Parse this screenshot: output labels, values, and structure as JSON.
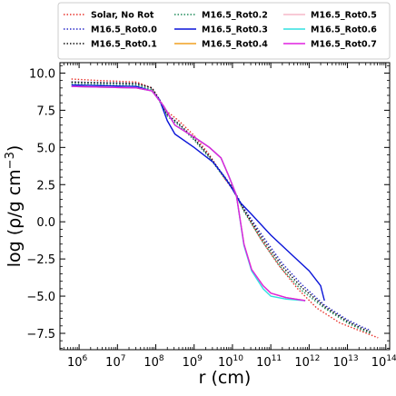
{
  "chart_data": {
    "type": "line",
    "xlabel_base": "r (cm)",
    "ylabel_base": "log (ρ/g cm",
    "ylabel_sup": "−3",
    "ylabel_close": ")",
    "x_scale": "log",
    "x_range_log10": [
      5.5,
      14.1
    ],
    "ylim": [
      -8.6,
      10.7
    ],
    "grid": false,
    "legend_placement": "top, above plot",
    "x_ticks": [
      {
        "base": "10",
        "exp": "6"
      },
      {
        "base": "10",
        "exp": "7"
      },
      {
        "base": "10",
        "exp": "8"
      },
      {
        "base": "10",
        "exp": "9"
      },
      {
        "base": "10",
        "exp": "10"
      },
      {
        "base": "10",
        "exp": "11"
      },
      {
        "base": "10",
        "exp": "12"
      },
      {
        "base": "10",
        "exp": "13"
      },
      {
        "base": "10",
        "exp": "14"
      }
    ],
    "y_ticks": [
      "10.0",
      "7.5",
      "5.0",
      "2.5",
      "0.0",
      "−2.5",
      "−5.0",
      "−7.5"
    ],
    "series": [
      {
        "name": "Solar, No Rot",
        "color": "#e8322b",
        "style": "dotted",
        "points": [
          [
            5.8,
            9.6
          ],
          [
            6.5,
            9.5
          ],
          [
            7.5,
            9.4
          ],
          [
            7.9,
            9.0
          ],
          [
            8.1,
            8.2
          ],
          [
            8.3,
            7.4
          ],
          [
            8.6,
            6.8
          ],
          [
            9.0,
            5.8
          ],
          [
            9.4,
            4.5
          ],
          [
            9.8,
            2.9
          ],
          [
            10.0,
            2.2
          ],
          [
            10.3,
            0.8
          ],
          [
            10.7,
            -1.0
          ],
          [
            11.2,
            -2.9
          ],
          [
            11.7,
            -4.5
          ],
          [
            12.2,
            -5.8
          ],
          [
            12.8,
            -6.8
          ],
          [
            13.3,
            -7.3
          ],
          [
            13.8,
            -7.8
          ]
        ]
      },
      {
        "name": "M16.5_Rot0.0",
        "color": "#2b2bc8",
        "style": "dotted",
        "points": [
          [
            5.8,
            9.4
          ],
          [
            7.5,
            9.3
          ],
          [
            7.9,
            9.0
          ],
          [
            8.1,
            8.2
          ],
          [
            8.3,
            7.2
          ],
          [
            8.6,
            6.6
          ],
          [
            9.0,
            5.6
          ],
          [
            9.4,
            4.4
          ],
          [
            9.8,
            3.0
          ],
          [
            10.0,
            2.3
          ],
          [
            10.3,
            0.9
          ],
          [
            10.8,
            -1.0
          ],
          [
            11.3,
            -2.8
          ],
          [
            11.8,
            -4.2
          ],
          [
            12.4,
            -5.6
          ],
          [
            13.0,
            -6.6
          ],
          [
            13.4,
            -7.1
          ],
          [
            13.6,
            -7.3
          ]
        ]
      },
      {
        "name": "M16.5_Rot0.1",
        "color": "#111111",
        "style": "dotted",
        "points": [
          [
            5.8,
            9.4
          ],
          [
            7.5,
            9.3
          ],
          [
            7.9,
            9.0
          ],
          [
            8.1,
            8.2
          ],
          [
            8.3,
            7.2
          ],
          [
            8.6,
            6.6
          ],
          [
            9.0,
            5.6
          ],
          [
            9.4,
            4.4
          ],
          [
            9.8,
            3.0
          ],
          [
            10.0,
            2.3
          ],
          [
            10.3,
            0.8
          ],
          [
            10.8,
            -1.2
          ],
          [
            11.3,
            -3.0
          ],
          [
            11.8,
            -4.4
          ],
          [
            12.4,
            -5.7
          ],
          [
            13.0,
            -6.7
          ],
          [
            13.4,
            -7.2
          ],
          [
            13.6,
            -7.4
          ]
        ]
      },
      {
        "name": "M16.5_Rot0.2",
        "color": "#1e8c5a",
        "style": "dotted",
        "points": [
          [
            5.8,
            9.3
          ],
          [
            7.5,
            9.2
          ],
          [
            7.9,
            8.9
          ],
          [
            8.1,
            8.1
          ],
          [
            8.3,
            7.1
          ],
          [
            8.6,
            6.5
          ],
          [
            9.0,
            5.5
          ],
          [
            9.4,
            4.3
          ],
          [
            9.8,
            2.9
          ],
          [
            10.0,
            2.3
          ],
          [
            10.3,
            0.7
          ],
          [
            10.8,
            -1.4
          ],
          [
            11.3,
            -3.2
          ],
          [
            11.8,
            -4.6
          ],
          [
            12.4,
            -5.8
          ],
          [
            13.0,
            -6.8
          ],
          [
            13.4,
            -7.3
          ],
          [
            13.6,
            -7.5
          ]
        ]
      },
      {
        "name": "M16.5_Rot0.3",
        "color": "#0a14d8",
        "style": "solid",
        "points": [
          [
            5.8,
            9.2
          ],
          [
            7.5,
            9.1
          ],
          [
            7.9,
            8.8
          ],
          [
            8.1,
            8.2
          ],
          [
            8.3,
            6.8
          ],
          [
            8.5,
            5.9
          ],
          [
            9.0,
            5.0
          ],
          [
            9.5,
            4.0
          ],
          [
            9.8,
            3.0
          ],
          [
            10.0,
            2.2
          ],
          [
            10.2,
            1.3
          ],
          [
            10.5,
            0.5
          ],
          [
            11.0,
            -0.9
          ],
          [
            11.5,
            -2.1
          ],
          [
            12.0,
            -3.3
          ],
          [
            12.3,
            -4.3
          ],
          [
            12.4,
            -5.3
          ]
        ]
      },
      {
        "name": "M16.5_Rot0.4",
        "color": "#f0a020",
        "style": "solid",
        "points": [
          [
            5.8,
            9.1
          ],
          [
            7.5,
            9.0
          ],
          [
            7.9,
            8.8
          ],
          [
            8.2,
            7.8
          ],
          [
            8.5,
            6.5
          ],
          [
            9.0,
            5.7
          ],
          [
            9.4,
            5.0
          ],
          [
            9.7,
            4.3
          ],
          [
            9.9,
            3.1
          ],
          [
            10.1,
            1.8
          ],
          [
            10.3,
            -1.5
          ],
          [
            10.5,
            -3.2
          ],
          [
            10.8,
            -4.3
          ],
          [
            11.0,
            -4.8
          ],
          [
            11.4,
            -5.1
          ],
          [
            11.9,
            -5.3
          ]
        ]
      },
      {
        "name": "M16.5_Rot0.5",
        "color": "#f5b8c8",
        "style": "solid",
        "points": [
          [
            5.8,
            9.1
          ],
          [
            7.5,
            9.0
          ],
          [
            7.9,
            8.8
          ],
          [
            8.2,
            7.8
          ],
          [
            8.5,
            6.5
          ],
          [
            9.0,
            5.7
          ],
          [
            9.4,
            5.0
          ],
          [
            9.7,
            4.3
          ],
          [
            9.9,
            3.1
          ],
          [
            10.1,
            1.8
          ],
          [
            10.3,
            -1.5
          ],
          [
            10.5,
            -3.2
          ],
          [
            10.8,
            -4.3
          ],
          [
            11.0,
            -4.8
          ],
          [
            11.4,
            -5.1
          ],
          [
            11.9,
            -5.3
          ]
        ]
      },
      {
        "name": "M16.5_Rot0.6",
        "color": "#30e0e0",
        "style": "solid",
        "points": [
          [
            5.8,
            9.1
          ],
          [
            7.5,
            9.0
          ],
          [
            7.9,
            8.8
          ],
          [
            8.2,
            7.8
          ],
          [
            8.5,
            6.5
          ],
          [
            9.0,
            5.7
          ],
          [
            9.4,
            5.0
          ],
          [
            9.7,
            4.3
          ],
          [
            9.9,
            3.1
          ],
          [
            10.1,
            1.8
          ],
          [
            10.3,
            -1.6
          ],
          [
            10.5,
            -3.3
          ],
          [
            10.8,
            -4.5
          ],
          [
            11.0,
            -5.0
          ],
          [
            11.4,
            -5.2
          ],
          [
            11.9,
            -5.3
          ]
        ]
      },
      {
        "name": "M16.5_Rot0.7",
        "color": "#e020e0",
        "style": "solid",
        "points": [
          [
            5.8,
            9.1
          ],
          [
            7.5,
            9.0
          ],
          [
            7.9,
            8.8
          ],
          [
            8.2,
            7.8
          ],
          [
            8.5,
            6.5
          ],
          [
            9.0,
            5.7
          ],
          [
            9.4,
            5.0
          ],
          [
            9.7,
            4.3
          ],
          [
            9.9,
            3.1
          ],
          [
            10.1,
            1.8
          ],
          [
            10.3,
            -1.5
          ],
          [
            10.5,
            -3.2
          ],
          [
            10.8,
            -4.3
          ],
          [
            11.0,
            -4.8
          ],
          [
            11.4,
            -5.1
          ],
          [
            11.9,
            -5.3
          ]
        ]
      }
    ]
  }
}
